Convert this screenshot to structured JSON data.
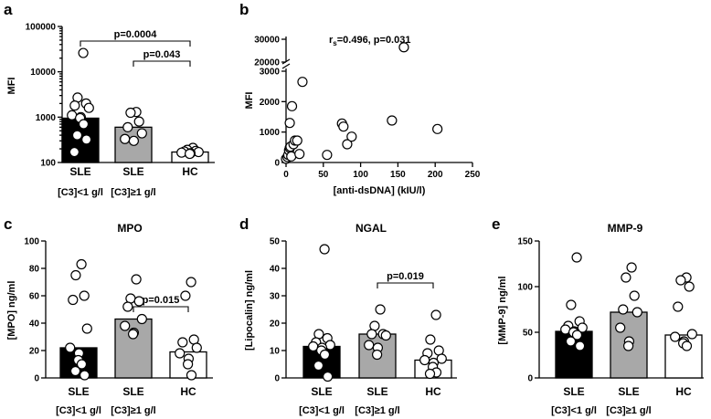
{
  "colors": {
    "sle_low": "#000000",
    "sle_high": "#a8a8a8",
    "hc": "#ffffff"
  },
  "chart_data": [
    {
      "id": "a",
      "panel_label": "a",
      "type": "bar",
      "scale": "log",
      "title": "",
      "ylabel": "MFI",
      "ylim": [
        100,
        100000
      ],
      "yticks": [
        100,
        1000,
        10000,
        100000
      ],
      "ytick_labels": [
        "100",
        "1000",
        "10000",
        "100000"
      ],
      "categories": [
        "SLE",
        "SLE",
        "HC"
      ],
      "category_sublabels": [
        "[C3]<1 g/l",
        "[C3]≥1 g/l",
        ""
      ],
      "bar_colors": [
        "sle_low",
        "sle_high",
        "hc"
      ],
      "values": [
        950,
        600,
        170
      ],
      "points": [
        [
          26000,
          2700,
          2000,
          1800,
          1600,
          1100,
          1000,
          950,
          700,
          400,
          320,
          170
        ],
        [
          1300,
          1250,
          800,
          600,
          440,
          330,
          300
        ],
        [
          210,
          190,
          180,
          175,
          170,
          165,
          160,
          155
        ]
      ],
      "comparisons": [
        {
          "groups": [
            0,
            2
          ],
          "label": "p=0.0004"
        },
        {
          "groups": [
            1,
            2
          ],
          "label": "p=0.043"
        }
      ]
    },
    {
      "id": "b",
      "panel_label": "b",
      "type": "scatter",
      "title": "",
      "xlabel": "[anti-dsDNA] (kIU/l)",
      "ylabel": "MFI",
      "xlim": [
        0,
        250
      ],
      "xticks": [
        0,
        50,
        100,
        150,
        200,
        250
      ],
      "xtick_labels": [
        "0",
        "50",
        "100",
        "150",
        "200",
        "250"
      ],
      "ylim_lower": [
        0,
        3000
      ],
      "yticks_lower": [
        0,
        1000,
        2000,
        3000
      ],
      "ytick_labels_lower": [
        "0",
        "1000",
        "2000",
        "3000"
      ],
      "ylim_upper": [
        20000,
        30000
      ],
      "yticks_upper": [
        20000,
        30000
      ],
      "ytick_labels_upper": [
        "20000",
        "30000"
      ],
      "annotation": {
        "prefix": "r",
        "subscript": "s",
        "text": "=0.496, p=0.031"
      },
      "points": [
        [
          0,
          120
        ],
        [
          2,
          180
        ],
        [
          3,
          250
        ],
        [
          4,
          400
        ],
        [
          5,
          480
        ],
        [
          6,
          520
        ],
        [
          7,
          200
        ],
        [
          5,
          1300
        ],
        [
          8,
          1850
        ],
        [
          10,
          600
        ],
        [
          12,
          720
        ],
        [
          15,
          720
        ],
        [
          18,
          280
        ],
        [
          22,
          2650
        ],
        [
          55,
          250
        ],
        [
          75,
          1280
        ],
        [
          77,
          1180
        ],
        [
          82,
          600
        ],
        [
          88,
          850
        ],
        [
          142,
          1380
        ],
        [
          158,
          26500
        ],
        [
          203,
          1100
        ]
      ]
    },
    {
      "id": "c",
      "panel_label": "c",
      "type": "bar",
      "scale": "linear",
      "title": "MPO",
      "ylabel": "[MPO] ng/ml",
      "ylim": [
        0,
        100
      ],
      "yticks": [
        0,
        20,
        40,
        60,
        80,
        100
      ],
      "ytick_labels": [
        "0",
        "20",
        "40",
        "60",
        "80",
        "100"
      ],
      "categories": [
        "SLE",
        "SLE",
        "HC"
      ],
      "category_sublabels": [
        "[C3]<1 g/l",
        "[C3]≥1 g/l",
        ""
      ],
      "bar_colors": [
        "sle_low",
        "sle_high",
        "hc"
      ],
      "values": [
        22,
        43,
        19
      ],
      "points": [
        [
          83,
          75,
          60,
          57,
          36,
          22,
          18,
          13,
          10,
          5,
          2
        ],
        [
          72,
          58,
          56,
          52,
          43,
          38,
          33,
          32
        ],
        [
          70,
          60,
          28,
          26,
          22,
          18,
          14,
          10,
          2
        ]
      ],
      "comparisons": [
        {
          "groups": [
            1,
            2
          ],
          "label": "p=0.015"
        }
      ]
    },
    {
      "id": "d",
      "panel_label": "d",
      "type": "bar",
      "scale": "linear",
      "title": "NGAL",
      "ylabel": "[Lipocalin] ng/ml",
      "ylim": [
        0,
        50
      ],
      "yticks": [
        0,
        10,
        20,
        30,
        40,
        50
      ],
      "ytick_labels": [
        "0",
        "10",
        "20",
        "30",
        "40",
        "50"
      ],
      "categories": [
        "SLE",
        "SLE",
        "HC"
      ],
      "category_sublabels": [
        "[C3]<1 g/l",
        "[C3]≥1 g/l",
        ""
      ],
      "bar_colors": [
        "sle_low",
        "sle_high",
        "hc"
      ],
      "values": [
        11.5,
        16,
        6.5
      ],
      "points": [
        [
          47,
          16,
          14.5,
          13,
          12,
          11.5,
          11,
          10,
          8.5,
          4.5,
          0.5
        ],
        [
          25,
          19,
          16,
          16,
          15.5,
          12,
          11,
          8.5
        ],
        [
          23,
          14,
          10,
          9,
          7,
          6.5,
          5.5,
          4,
          2,
          1.5
        ]
      ],
      "comparisons": [
        {
          "groups": [
            1,
            2
          ],
          "label": "p=0.019"
        }
      ]
    },
    {
      "id": "e",
      "panel_label": "e",
      "type": "bar",
      "scale": "linear",
      "title": "MMP-9",
      "ylabel": "[MMP-9] ng/ml",
      "ylim": [
        0,
        150
      ],
      "yticks": [
        0,
        50,
        100,
        150
      ],
      "ytick_labels": [
        "0",
        "50",
        "100",
        "150"
      ],
      "categories": [
        "SLE",
        "SLE",
        "HC"
      ],
      "category_sublabels": [
        "[C3]<1 g/l",
        "[C3]≥1 g/l",
        ""
      ],
      "bar_colors": [
        "sle_low",
        "sle_high",
        "hc"
      ],
      "values": [
        51,
        72,
        47
      ],
      "points": [
        [
          132,
          80,
          62,
          57,
          55,
          53,
          51,
          50,
          47,
          40,
          35
        ],
        [
          121,
          110,
          90,
          75,
          72,
          55,
          40,
          35
        ],
        [
          110,
          107,
          100,
          78,
          48,
          45,
          40,
          38,
          35
        ]
      ],
      "comparisons": []
    }
  ]
}
